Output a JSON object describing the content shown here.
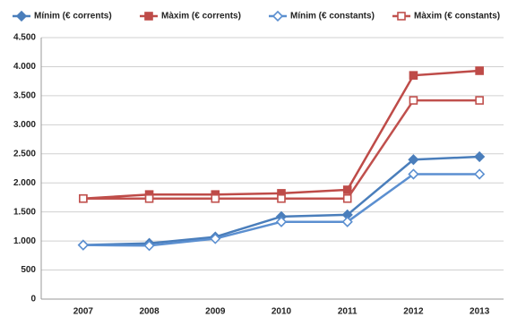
{
  "chart_data": {
    "type": "line",
    "categories": [
      "2007",
      "2008",
      "2009",
      "2010",
      "2011",
      "2012",
      "2013"
    ],
    "series": [
      {
        "name": "Mínim (€ corrents)",
        "color": "#4a7ebb",
        "marker": "diamond",
        "filled": true,
        "values": [
          930,
          960,
          1070,
          1420,
          1450,
          2400,
          2450
        ]
      },
      {
        "name": "Màxim (€ corrents)",
        "color": "#be4b48",
        "marker": "square",
        "filled": true,
        "values": [
          1730,
          1800,
          1800,
          1820,
          1880,
          3850,
          3930
        ]
      },
      {
        "name": "Mínim (€ constants)",
        "color": "#5b8fd0",
        "marker": "diamond",
        "filled": false,
        "values": [
          930,
          920,
          1040,
          1330,
          1330,
          2150,
          2150
        ]
      },
      {
        "name": "Màxim (€ constants)",
        "color": "#c0504d",
        "marker": "square",
        "filled": false,
        "values": [
          1730,
          1730,
          1730,
          1730,
          1730,
          3420,
          3420
        ]
      }
    ],
    "ylim": [
      0,
      4500
    ],
    "yticks": [
      0,
      500,
      {
        "value": 1000,
        "label": "1.000"
      },
      {
        "value": 1500,
        "label": "1.500"
      },
      {
        "value": 2000,
        "label": "2.000"
      },
      {
        "value": 2500,
        "label": "2.500"
      },
      {
        "value": 3000,
        "label": "3.000"
      },
      {
        "value": 3500,
        "label": "3.500"
      },
      {
        "value": 4000,
        "label": "4.000"
      },
      {
        "value": 4500,
        "label": "4.500"
      }
    ],
    "grid": true,
    "legend": "top"
  }
}
